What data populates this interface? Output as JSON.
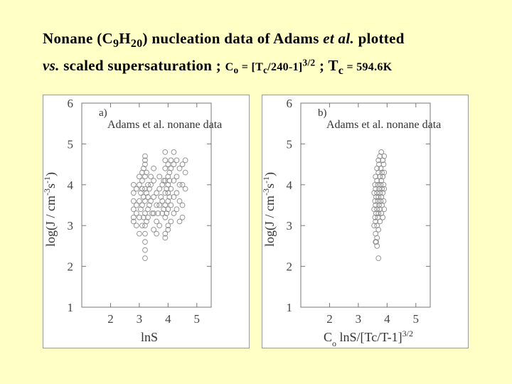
{
  "title": {
    "line1_pre": "Nonane (C",
    "line1_sub1": "9",
    "line1_mid": "H",
    "line1_sub2": "20",
    "line1_post": ") nucleation data of  Adams ",
    "line1_ital": "et al.",
    "line1_end": "  plotted",
    "line2_ital": "vs.",
    "line2_mid": " scaled supersaturation ;  ",
    "c_sym": "C",
    "c_sub": "o",
    "c_eq": " = [T",
    "c_sub2": "c",
    "c_rest": "/240-1]",
    "c_sup": "3/2",
    "sep": " ; ",
    "t_sym": "T",
    "t_sub": "c",
    "t_eq": " = 594.6K"
  },
  "chart_data": [
    {
      "type": "scatter",
      "panel_label": "a)",
      "dataset_label": "Adams et al. nonane data",
      "xlabel": "lnS",
      "ylabel": "log(J / cm-3s-1)",
      "xlim": [
        1.0,
        5.5
      ],
      "ylim": [
        1,
        6
      ],
      "xticks": [
        2,
        3,
        4,
        5
      ],
      "yticks": [
        1,
        2,
        3,
        4,
        5,
        6
      ],
      "series": [
        {
          "values": [
            [
              2.8,
              3.1
            ],
            [
              2.8,
              3.2
            ],
            [
              2.8,
              3.4
            ],
            [
              2.8,
              3.6
            ],
            [
              2.8,
              3.8
            ],
            [
              2.8,
              4.0
            ],
            [
              2.9,
              3.0
            ],
            [
              2.9,
              3.3
            ],
            [
              2.9,
              3.5
            ],
            [
              2.9,
              3.9
            ],
            [
              3.0,
              2.8
            ],
            [
              3.0,
              3.2
            ],
            [
              3.0,
              3.6
            ],
            [
              3.0,
              4.0
            ],
            [
              3.0,
              4.2
            ],
            [
              3.05,
              3.4
            ],
            [
              3.05,
              3.8
            ],
            [
              3.1,
              3.0
            ],
            [
              3.1,
              3.5
            ],
            [
              3.1,
              3.9
            ],
            [
              3.1,
              4.1
            ],
            [
              3.1,
              4.3
            ],
            [
              3.15,
              3.2
            ],
            [
              3.15,
              3.7
            ],
            [
              3.15,
              4.4
            ],
            [
              3.2,
              2.2
            ],
            [
              3.2,
              2.4
            ],
            [
              3.2,
              2.6
            ],
            [
              3.2,
              2.8
            ],
            [
              3.2,
              3.0
            ],
            [
              3.2,
              3.3
            ],
            [
              3.2,
              3.6
            ],
            [
              3.2,
              3.9
            ],
            [
              3.2,
              4.2
            ],
            [
              3.2,
              4.5
            ],
            [
              3.2,
              4.6
            ],
            [
              3.2,
              4.7
            ],
            [
              3.25,
              3.1
            ],
            [
              3.25,
              3.8
            ],
            [
              3.25,
              4.3
            ],
            [
              3.3,
              3.2
            ],
            [
              3.3,
              3.4
            ],
            [
              3.3,
              3.7
            ],
            [
              3.3,
              4.0
            ],
            [
              3.35,
              3.5
            ],
            [
              3.35,
              3.9
            ],
            [
              3.4,
              3.6
            ],
            [
              3.4,
              4.0
            ],
            [
              3.4,
              4.2
            ],
            [
              3.45,
              3.3
            ],
            [
              3.5,
              2.9
            ],
            [
              3.5,
              3.3
            ],
            [
              3.5,
              3.7
            ],
            [
              3.5,
              4.1
            ],
            [
              3.5,
              4.4
            ],
            [
              3.6,
              2.8
            ],
            [
              3.6,
              3.1
            ],
            [
              3.6,
              3.5
            ],
            [
              3.6,
              3.8
            ],
            [
              3.65,
              3.3
            ],
            [
              3.7,
              3.0
            ],
            [
              3.7,
              3.5
            ],
            [
              3.7,
              3.9
            ],
            [
              3.7,
              4.2
            ],
            [
              3.75,
              3.7
            ],
            [
              3.8,
              3.3
            ],
            [
              3.8,
              3.6
            ],
            [
              3.8,
              4.0
            ],
            [
              3.85,
              3.4
            ],
            [
              3.85,
              4.1
            ],
            [
              3.9,
              2.7
            ],
            [
              3.9,
              2.8
            ],
            [
              3.9,
              3.2
            ],
            [
              3.9,
              3.5
            ],
            [
              3.9,
              3.8
            ],
            [
              3.9,
              4.1
            ],
            [
              3.9,
              4.4
            ],
            [
              3.9,
              4.6
            ],
            [
              3.9,
              4.8
            ],
            [
              3.95,
              3.3
            ],
            [
              3.95,
              3.9
            ],
            [
              4.0,
              2.9
            ],
            [
              4.0,
              3.0
            ],
            [
              4.0,
              3.4
            ],
            [
              4.0,
              3.6
            ],
            [
              4.0,
              3.8
            ],
            [
              4.0,
              4.0
            ],
            [
              4.0,
              4.2
            ],
            [
              4.0,
              4.5
            ],
            [
              4.05,
              3.7
            ],
            [
              4.05,
              4.1
            ],
            [
              4.05,
              4.3
            ],
            [
              4.1,
              3.1
            ],
            [
              4.1,
              3.5
            ],
            [
              4.1,
              3.9
            ],
            [
              4.1,
              4.4
            ],
            [
              4.1,
              4.6
            ],
            [
              4.2,
              3.3
            ],
            [
              4.2,
              3.7
            ],
            [
              4.2,
              4.1
            ],
            [
              4.2,
              4.5
            ],
            [
              4.2,
              4.8
            ],
            [
              4.3,
              3.4
            ],
            [
              4.3,
              3.8
            ],
            [
              4.3,
              4.2
            ],
            [
              4.3,
              4.6
            ],
            [
              4.4,
              3.1
            ],
            [
              4.4,
              3.6
            ],
            [
              4.4,
              4.0
            ],
            [
              4.4,
              4.4
            ],
            [
              4.5,
              3.2
            ],
            [
              4.5,
              3.5
            ],
            [
              4.5,
              4.0
            ],
            [
              4.5,
              4.5
            ],
            [
              4.6,
              3.9
            ],
            [
              4.6,
              4.3
            ],
            [
              4.6,
              4.6
            ]
          ]
        }
      ]
    },
    {
      "type": "scatter",
      "panel_label": "b)",
      "dataset_label": "Adams et al. nonane data",
      "xlabel": "Co lnS/[Tc/T-1]3/2",
      "ylabel": "log(J / cm-3s-1)",
      "xlim": [
        1.0,
        5.5
      ],
      "ylim": [
        1,
        6
      ],
      "xticks": [
        2,
        3,
        4,
        5
      ],
      "yticks": [
        1,
        2,
        3,
        4,
        5,
        6
      ],
      "series": [
        {
          "values": [
            [
              3.55,
              3.0
            ],
            [
              3.55,
              3.4
            ],
            [
              3.55,
              3.8
            ],
            [
              3.58,
              3.2
            ],
            [
              3.58,
              3.6
            ],
            [
              3.58,
              4.0
            ],
            [
              3.6,
              2.6
            ],
            [
              3.6,
              2.8
            ],
            [
              3.6,
              3.1
            ],
            [
              3.6,
              3.5
            ],
            [
              3.6,
              3.9
            ],
            [
              3.6,
              4.2
            ],
            [
              3.62,
              3.3
            ],
            [
              3.62,
              3.7
            ],
            [
              3.65,
              2.5
            ],
            [
              3.65,
              2.7
            ],
            [
              3.65,
              3.0
            ],
            [
              3.65,
              3.4
            ],
            [
              3.65,
              3.8
            ],
            [
              3.65,
              4.1
            ],
            [
              3.65,
              4.4
            ],
            [
              3.68,
              3.2
            ],
            [
              3.68,
              3.6
            ],
            [
              3.68,
              4.0
            ],
            [
              3.7,
              2.9
            ],
            [
              3.7,
              3.3
            ],
            [
              3.7,
              3.7
            ],
            [
              3.7,
              4.3
            ],
            [
              3.7,
              4.6
            ],
            [
              3.72,
              3.5
            ],
            [
              3.72,
              3.9
            ],
            [
              3.72,
              4.5
            ],
            [
              3.75,
              3.1
            ],
            [
              3.75,
              3.4
            ],
            [
              3.75,
              3.8
            ],
            [
              3.75,
              4.2
            ],
            [
              3.75,
              4.7
            ],
            [
              3.78,
              3.6
            ],
            [
              3.78,
              4.0
            ],
            [
              3.78,
              4.4
            ],
            [
              3.8,
              3.3
            ],
            [
              3.8,
              3.7
            ],
            [
              3.8,
              4.1
            ],
            [
              3.8,
              4.8
            ],
            [
              3.82,
              3.5
            ],
            [
              3.82,
              3.9
            ],
            [
              3.82,
              4.3
            ],
            [
              3.85,
              3.2
            ],
            [
              3.85,
              3.8
            ],
            [
              3.85,
              4.2
            ],
            [
              3.85,
              4.6
            ],
            [
              3.88,
              3.6
            ],
            [
              3.88,
              4.0
            ],
            [
              3.88,
              4.5
            ],
            [
              3.9,
              3.4
            ],
            [
              3.9,
              3.9
            ],
            [
              3.9,
              4.3
            ],
            [
              3.9,
              4.7
            ],
            [
              3.7,
              2.2
            ],
            [
              3.62,
              2.6
            ]
          ]
        }
      ]
    }
  ]
}
